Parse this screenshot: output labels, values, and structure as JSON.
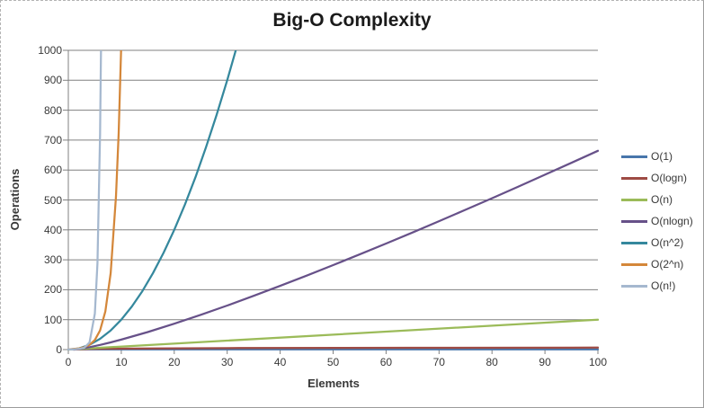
{
  "chart_data": {
    "type": "line",
    "title": "Big-O Complexity",
    "xlabel": "Elements",
    "ylabel": "Operations",
    "xlim": [
      0,
      100
    ],
    "ylim": [
      0,
      1000
    ],
    "x_ticks": [
      0,
      10,
      20,
      30,
      40,
      50,
      60,
      70,
      80,
      90,
      100
    ],
    "y_ticks": [
      0,
      100,
      200,
      300,
      400,
      500,
      600,
      700,
      800,
      900,
      1000
    ],
    "grid": "horizontal",
    "legend_position": "right",
    "series": [
      {
        "name": "O(1)",
        "color": "#4876AB",
        "points": [
          [
            0,
            1
          ],
          [
            100,
            1
          ]
        ]
      },
      {
        "name": "O(logn)",
        "color": "#9E4B44",
        "points": [
          [
            1,
            0
          ],
          [
            2,
            1
          ],
          [
            4,
            2
          ],
          [
            8,
            3
          ],
          [
            16,
            4
          ],
          [
            32,
            5
          ],
          [
            64,
            6
          ],
          [
            100,
            6.64
          ]
        ]
      },
      {
        "name": "O(n)",
        "color": "#9BBB59",
        "points": [
          [
            0,
            0
          ],
          [
            100,
            100
          ]
        ]
      },
      {
        "name": "O(nlogn)",
        "color": "#675189",
        "points": [
          [
            1,
            0
          ],
          [
            2,
            2
          ],
          [
            4,
            8
          ],
          [
            6,
            15.51
          ],
          [
            8,
            24
          ],
          [
            10,
            33.22
          ],
          [
            15,
            58.6
          ],
          [
            20,
            86.44
          ],
          [
            25,
            116.1
          ],
          [
            30,
            147.21
          ],
          [
            35,
            179.51
          ],
          [
            40,
            212.88
          ],
          [
            45,
            247.15
          ],
          [
            50,
            282.19
          ],
          [
            55,
            317.95
          ],
          [
            60,
            354.41
          ],
          [
            65,
            391.43
          ],
          [
            70,
            428.99
          ],
          [
            75,
            467.16
          ],
          [
            80,
            505.75
          ],
          [
            85,
            544.85
          ],
          [
            90,
            584.27
          ],
          [
            95,
            624.06
          ],
          [
            100,
            664.39
          ]
        ]
      },
      {
        "name": "O(n^2)",
        "color": "#35889D",
        "points": [
          [
            0,
            0
          ],
          [
            2,
            4
          ],
          [
            4,
            16
          ],
          [
            6,
            36
          ],
          [
            8,
            64
          ],
          [
            10,
            100
          ],
          [
            12,
            144
          ],
          [
            14,
            196
          ],
          [
            16,
            256
          ],
          [
            18,
            324
          ],
          [
            20,
            400
          ],
          [
            22,
            484
          ],
          [
            24,
            576
          ],
          [
            26,
            676
          ],
          [
            28,
            784
          ],
          [
            30,
            900
          ],
          [
            32,
            1024
          ]
        ]
      },
      {
        "name": "O(2^n)",
        "color": "#D4873A",
        "points": [
          [
            0,
            1
          ],
          [
            1,
            2
          ],
          [
            2,
            4
          ],
          [
            3,
            8
          ],
          [
            4,
            16
          ],
          [
            5,
            32
          ],
          [
            6,
            64
          ],
          [
            7,
            128
          ],
          [
            8,
            256
          ],
          [
            9,
            512
          ],
          [
            9.5,
            724
          ],
          [
            10,
            1024
          ],
          [
            10.1,
            1097
          ]
        ]
      },
      {
        "name": "O(n!)",
        "color": "#A5B8CF",
        "points": [
          [
            0,
            1
          ],
          [
            1,
            1
          ],
          [
            2,
            2
          ],
          [
            3,
            6
          ],
          [
            4,
            24
          ],
          [
            5,
            120
          ],
          [
            5.5,
            288
          ],
          [
            6,
            720
          ],
          [
            6.2,
            1050
          ],
          [
            6.4,
            1520
          ]
        ]
      }
    ]
  },
  "colors": {
    "grid": "#808080",
    "axis": "#808080",
    "tick_text": "#383838",
    "title_text": "#1a1a1a",
    "background": "#ffffff"
  }
}
